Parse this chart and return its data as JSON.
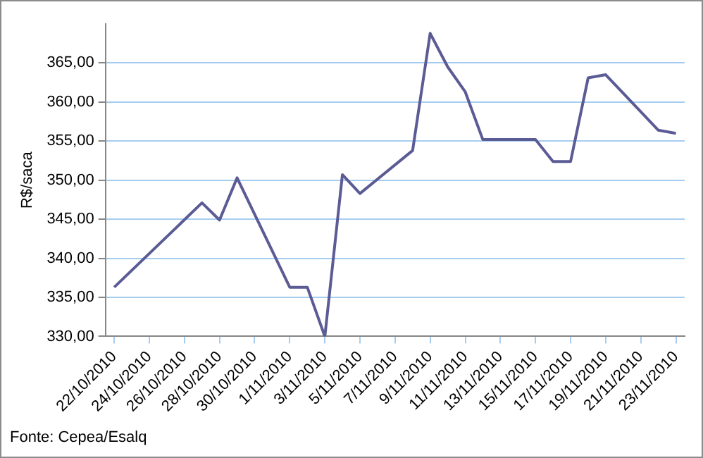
{
  "chart_data": {
    "type": "line",
    "ylabel": "R$/saca",
    "annotations": [
      "Fonte: Cepea/Esalq"
    ],
    "x": [
      "2010-10-22",
      "2010-10-27",
      "2010-10-28",
      "2010-10-29",
      "2010-11-01",
      "2010-11-02",
      "2010-11-03",
      "2010-11-04",
      "2010-11-05",
      "2010-11-08",
      "2010-11-09",
      "2010-11-10",
      "2010-11-11",
      "2010-11-12",
      "2010-11-15",
      "2010-11-16",
      "2010-11-17",
      "2010-11-18",
      "2010-11-19",
      "2010-11-22",
      "2010-11-23"
    ],
    "series": [
      {
        "color": "#5b5b95",
        "values": [
          336.3,
          347.1,
          344.9,
          350.3,
          336.3,
          336.3,
          330.0,
          350.7,
          348.3,
          353.8,
          368.8,
          364.5,
          361.3,
          355.2,
          355.2,
          352.4,
          352.4,
          363.1,
          363.5,
          356.4,
          356.0
        ]
      }
    ],
    "xlim": [
      "2010-10-21T12:00",
      "2010-11-23T12:00"
    ],
    "xticks": [
      {
        "value": "2010-10-22",
        "label": "22/10/2010"
      },
      {
        "value": "2010-10-24",
        "label": "24/10/2010"
      },
      {
        "value": "2010-10-26",
        "label": "26/10/2010"
      },
      {
        "value": "2010-10-28",
        "label": "28/10/2010"
      },
      {
        "value": "2010-10-30",
        "label": "30/10/2010"
      },
      {
        "value": "2010-11-01",
        "label": "1/11/2010"
      },
      {
        "value": "2010-11-03",
        "label": "3/11/2010"
      },
      {
        "value": "2010-11-05",
        "label": "5/11/2010"
      },
      {
        "value": "2010-11-07",
        "label": "7/11/2010"
      },
      {
        "value": "2010-11-09",
        "label": "9/11/2010"
      },
      {
        "value": "2010-11-11",
        "label": "11/11/2010"
      },
      {
        "value": "2010-11-13",
        "label": "13/11/2010"
      },
      {
        "value": "2010-11-15",
        "label": "15/11/2010"
      },
      {
        "value": "2010-11-17",
        "label": "17/11/2010"
      },
      {
        "value": "2010-11-19",
        "label": "19/11/2010"
      },
      {
        "value": "2010-11-21",
        "label": "21/11/2010"
      },
      {
        "value": "2010-11-23",
        "label": "23/11/2010"
      }
    ],
    "ylim": [
      330,
      370
    ],
    "yticks": [
      {
        "value": 330,
        "label": "330,00"
      },
      {
        "value": 335,
        "label": "335,00"
      },
      {
        "value": 340,
        "label": "340,00"
      },
      {
        "value": 345,
        "label": "345,00"
      },
      {
        "value": 350,
        "label": "350,00"
      },
      {
        "value": 355,
        "label": "355,00"
      },
      {
        "value": 360,
        "label": "360,00"
      },
      {
        "value": 365,
        "label": "365,00"
      }
    ],
    "grid": "y",
    "legend": false,
    "marker": "none",
    "line_style": "solid"
  }
}
